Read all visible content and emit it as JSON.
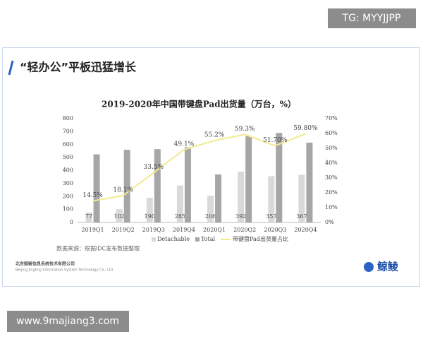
{
  "header": {
    "watermark": "TG: MYYJJPP"
  },
  "slide": {
    "title": "“轻办公”平板迅猛增长",
    "source": "数据来源：根据IDC发布数据整理",
    "company": "北京鲸鲮信息系统技术有限公司",
    "company_en": "Beijing Jingling Information System Technology Co., Ltd",
    "logo_text": "鲸鲮"
  },
  "footer": {
    "watermark": "www.9majiang3.com"
  },
  "chart_data": {
    "type": "bar_line",
    "title": "2019-2020年中国带键盘Pad出货量（万台，%）",
    "categories": [
      "2019Q1",
      "2019Q2",
      "2019Q3",
      "2019Q4",
      "2020Q1",
      "2020Q2",
      "2020Q3",
      "2020Q4"
    ],
    "series": [
      {
        "name": "Detachable",
        "type": "bar",
        "color": "#d9d9d9",
        "values": [
          77,
          102,
          190,
          285,
          206,
          392,
          357,
          367
        ]
      },
      {
        "name": "Total",
        "type": "bar",
        "color": "#a6a6a6",
        "values": [
          525,
          560,
          565,
          580,
          370,
          665,
          690,
          615
        ]
      },
      {
        "name": "带键盘Pad出货量占比",
        "type": "line",
        "axis": "y2",
        "color": "#f2e98f",
        "values": [
          14.5,
          18.1,
          33.5,
          49.1,
          55.2,
          59.3,
          51.7,
          59.8
        ],
        "value_labels": [
          "14.5%",
          "18.1%",
          "33.5%",
          "49.1%",
          "55.2%",
          "59.3%",
          "51.70%",
          "59.80%"
        ]
      }
    ],
    "ylim": [
      0,
      800
    ],
    "yticks": [
      0,
      100,
      200,
      300,
      400,
      500,
      600,
      700,
      800
    ],
    "y2lim": [
      0,
      70
    ],
    "y2ticks": [
      {
        "value": 0,
        "label": "0%"
      },
      {
        "value": 10,
        "label": "10%"
      },
      {
        "value": 20,
        "label": "20%"
      },
      {
        "value": 30,
        "label": "30%"
      },
      {
        "value": 40,
        "label": "40%"
      },
      {
        "value": 50,
        "label": "50%"
      },
      {
        "value": 60,
        "label": "60%"
      },
      {
        "value": 70,
        "label": "70%"
      }
    ],
    "legend": "bottom"
  }
}
